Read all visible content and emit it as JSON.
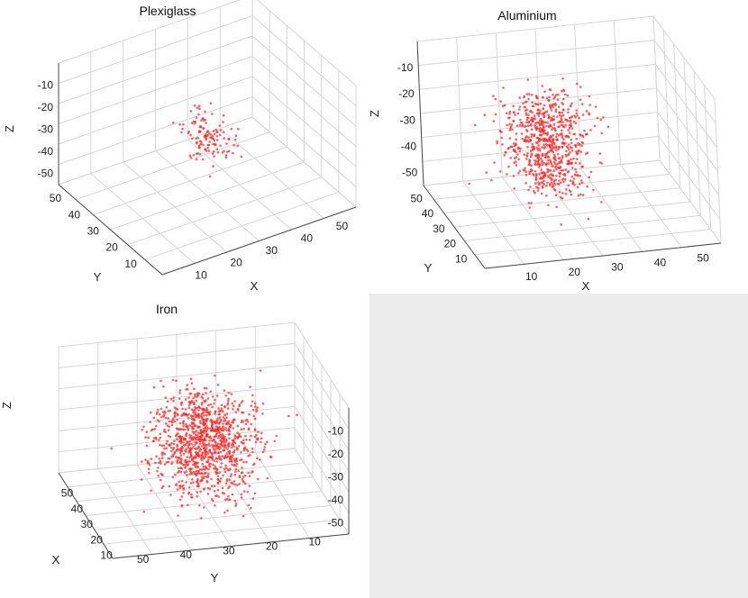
{
  "chart_data": [
    {
      "type": "scatter3d",
      "title": "Plexiglass",
      "xlabel": "X",
      "ylabel": "Y",
      "zlabel": "Z",
      "xticks": [
        "10",
        "20",
        "30",
        "40",
        "50"
      ],
      "yticks": [
        "10",
        "20",
        "30",
        "40",
        "50"
      ],
      "zticks": [
        "-10",
        "-20",
        "-30",
        "-40",
        "-50"
      ],
      "xlim": [
        0,
        55
      ],
      "ylim": [
        0,
        55
      ],
      "zlim": [
        -55,
        0
      ],
      "view": "x-axis front-right, y-axis front-left",
      "grid": true,
      "marker_color": "#ff2a2a",
      "point_clusters": [
        {
          "center": {
            "x": 25,
            "y": 25,
            "z": -21
          },
          "spread": {
            "x": 3,
            "y": 3,
            "z": 5
          },
          "count": 70
        },
        {
          "center": {
            "x": 28,
            "y": 26,
            "z": -31
          },
          "spread": {
            "x": 3,
            "y": 3,
            "z": 4
          },
          "count": 60
        }
      ]
    },
    {
      "type": "scatter3d",
      "title": "Aluminium",
      "xlabel": "X",
      "ylabel": "Y",
      "zlabel": "Z",
      "xticks": [
        "10",
        "20",
        "30",
        "40",
        "50"
      ],
      "yticks": [
        "10",
        "20",
        "30",
        "40",
        "50"
      ],
      "zticks": [
        "-10",
        "-20",
        "-30",
        "-40",
        "-50"
      ],
      "xlim": [
        0,
        55
      ],
      "ylim": [
        0,
        55
      ],
      "zlim": [
        -55,
        0
      ],
      "view": "x-axis front-right, y-axis left",
      "grid": true,
      "marker_color": "#ff2a2a",
      "point_clusters": [
        {
          "center": {
            "x": 22,
            "y": 28,
            "z": -25
          },
          "spread": {
            "x": 5,
            "y": 6,
            "z": 9
          },
          "count": 650
        },
        {
          "center": {
            "x": 24,
            "y": 28,
            "z": -41
          },
          "spread": {
            "x": 4,
            "y": 4,
            "z": 4
          },
          "count": 120
        }
      ]
    },
    {
      "type": "scatter3d",
      "title": "Iron",
      "xlabel": "X",
      "ylabel": "Y",
      "zlabel": "Z",
      "xticks": [
        "10",
        "20",
        "30",
        "40",
        "50"
      ],
      "yticks": [
        "50",
        "40",
        "30",
        "20",
        "10"
      ],
      "zticks": [
        "-10",
        "-20",
        "-30",
        "-40",
        "-50"
      ],
      "xlim": [
        0,
        55
      ],
      "ylim": [
        0,
        55
      ],
      "zlim": [
        -55,
        0
      ],
      "view": "y-axis front (reversed), x-axis left",
      "grid": true,
      "marker_color": "#ff2a2a",
      "point_clusters": [
        {
          "center": {
            "x": 28,
            "y": 28,
            "z": -27
          },
          "spread": {
            "x": 6,
            "y": 6,
            "z": 10
          },
          "count": 1000
        },
        {
          "center": {
            "x": 28,
            "y": 28,
            "z": -44
          },
          "spread": {
            "x": 9,
            "y": 6,
            "z": 3
          },
          "count": 140
        }
      ]
    }
  ]
}
